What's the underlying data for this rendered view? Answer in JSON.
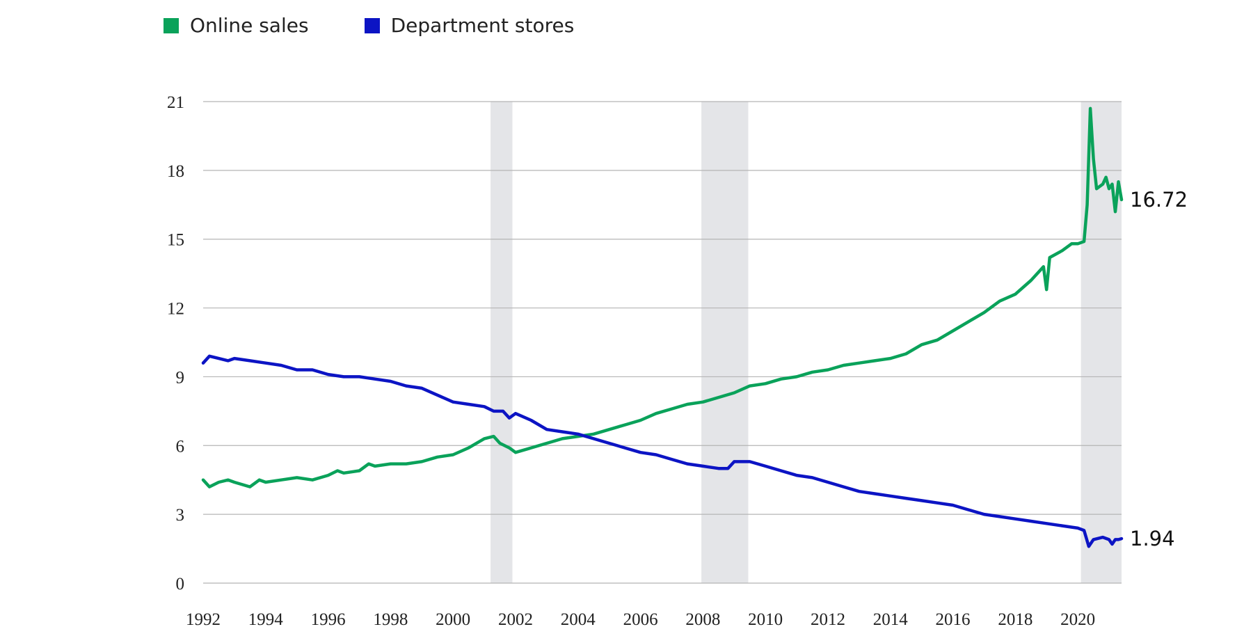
{
  "legend": [
    {
      "name": "Online sales",
      "color": "#0aa25a"
    },
    {
      "name": "Department stores",
      "color": "#0c14c4"
    }
  ],
  "chart_data": {
    "type": "line",
    "title": "",
    "xlabel": "",
    "ylabel": "",
    "xlim": [
      1992,
      2021.4
    ],
    "ylim": [
      0,
      21
    ],
    "yticks": [
      0,
      3,
      6,
      9,
      12,
      15,
      18,
      21
    ],
    "xticks": [
      1992,
      1994,
      1996,
      1998,
      2000,
      2002,
      2004,
      2006,
      2008,
      2010,
      2012,
      2014,
      2016,
      2018,
      2020
    ],
    "grid": "horizontal",
    "legend_position": "top-left",
    "shaded_periods": [
      {
        "start": 2001.2,
        "end": 2001.9
      },
      {
        "start": 2007.95,
        "end": 2009.45
      },
      {
        "start": 2020.1,
        "end": 2021.4
      }
    ],
    "series": [
      {
        "name": "Online sales",
        "color": "#0aa25a",
        "end_label": "16.72",
        "points": [
          [
            1992.0,
            4.5
          ],
          [
            1992.2,
            4.2
          ],
          [
            1992.5,
            4.4
          ],
          [
            1992.8,
            4.5
          ],
          [
            1993.0,
            4.4
          ],
          [
            1993.5,
            4.2
          ],
          [
            1993.8,
            4.5
          ],
          [
            1994.0,
            4.4
          ],
          [
            1994.5,
            4.5
          ],
          [
            1995.0,
            4.6
          ],
          [
            1995.5,
            4.5
          ],
          [
            1996.0,
            4.7
          ],
          [
            1996.3,
            4.9
          ],
          [
            1996.5,
            4.8
          ],
          [
            1997.0,
            4.9
          ],
          [
            1997.3,
            5.2
          ],
          [
            1997.5,
            5.1
          ],
          [
            1998.0,
            5.2
          ],
          [
            1998.5,
            5.2
          ],
          [
            1999.0,
            5.3
          ],
          [
            1999.5,
            5.5
          ],
          [
            2000.0,
            5.6
          ],
          [
            2000.5,
            5.9
          ],
          [
            2001.0,
            6.3
          ],
          [
            2001.3,
            6.4
          ],
          [
            2001.5,
            6.1
          ],
          [
            2001.8,
            5.9
          ],
          [
            2002.0,
            5.7
          ],
          [
            2002.5,
            5.9
          ],
          [
            2003.0,
            6.1
          ],
          [
            2003.5,
            6.3
          ],
          [
            2004.0,
            6.4
          ],
          [
            2004.5,
            6.5
          ],
          [
            2005.0,
            6.7
          ],
          [
            2005.5,
            6.9
          ],
          [
            2006.0,
            7.1
          ],
          [
            2006.5,
            7.4
          ],
          [
            2007.0,
            7.6
          ],
          [
            2007.5,
            7.8
          ],
          [
            2008.0,
            7.9
          ],
          [
            2008.5,
            8.1
          ],
          [
            2009.0,
            8.3
          ],
          [
            2009.5,
            8.6
          ],
          [
            2010.0,
            8.7
          ],
          [
            2010.5,
            8.9
          ],
          [
            2011.0,
            9.0
          ],
          [
            2011.5,
            9.2
          ],
          [
            2012.0,
            9.3
          ],
          [
            2012.5,
            9.5
          ],
          [
            2013.0,
            9.6
          ],
          [
            2013.5,
            9.7
          ],
          [
            2014.0,
            9.8
          ],
          [
            2014.5,
            10.0
          ],
          [
            2015.0,
            10.4
          ],
          [
            2015.5,
            10.6
          ],
          [
            2016.0,
            11.0
          ],
          [
            2016.5,
            11.4
          ],
          [
            2017.0,
            11.8
          ],
          [
            2017.5,
            12.3
          ],
          [
            2018.0,
            12.6
          ],
          [
            2018.5,
            13.2
          ],
          [
            2018.9,
            13.8
          ],
          [
            2019.0,
            12.8
          ],
          [
            2019.1,
            14.2
          ],
          [
            2019.5,
            14.5
          ],
          [
            2019.8,
            14.8
          ],
          [
            2020.0,
            14.8
          ],
          [
            2020.2,
            14.9
          ],
          [
            2020.3,
            16.5
          ],
          [
            2020.4,
            20.7
          ],
          [
            2020.5,
            18.5
          ],
          [
            2020.6,
            17.2
          ],
          [
            2020.8,
            17.4
          ],
          [
            2020.9,
            17.7
          ],
          [
            2021.0,
            17.2
          ],
          [
            2021.1,
            17.4
          ],
          [
            2021.2,
            16.2
          ],
          [
            2021.3,
            17.5
          ],
          [
            2021.4,
            16.72
          ]
        ]
      },
      {
        "name": "Department stores",
        "color": "#0c14c4",
        "end_label": "1.94",
        "points": [
          [
            1992.0,
            9.6
          ],
          [
            1992.2,
            9.9
          ],
          [
            1992.5,
            9.8
          ],
          [
            1992.8,
            9.7
          ],
          [
            1993.0,
            9.8
          ],
          [
            1993.5,
            9.7
          ],
          [
            1994.0,
            9.6
          ],
          [
            1994.5,
            9.5
          ],
          [
            1995.0,
            9.3
          ],
          [
            1995.5,
            9.3
          ],
          [
            1996.0,
            9.1
          ],
          [
            1996.5,
            9.0
          ],
          [
            1997.0,
            9.0
          ],
          [
            1997.5,
            8.9
          ],
          [
            1998.0,
            8.8
          ],
          [
            1998.5,
            8.6
          ],
          [
            1999.0,
            8.5
          ],
          [
            1999.5,
            8.2
          ],
          [
            2000.0,
            7.9
          ],
          [
            2000.5,
            7.8
          ],
          [
            2001.0,
            7.7
          ],
          [
            2001.3,
            7.5
          ],
          [
            2001.6,
            7.5
          ],
          [
            2001.8,
            7.2
          ],
          [
            2002.0,
            7.4
          ],
          [
            2002.5,
            7.1
          ],
          [
            2003.0,
            6.7
          ],
          [
            2003.5,
            6.6
          ],
          [
            2004.0,
            6.5
          ],
          [
            2004.5,
            6.3
          ],
          [
            2005.0,
            6.1
          ],
          [
            2005.5,
            5.9
          ],
          [
            2006.0,
            5.7
          ],
          [
            2006.5,
            5.6
          ],
          [
            2007.0,
            5.4
          ],
          [
            2007.5,
            5.2
          ],
          [
            2008.0,
            5.1
          ],
          [
            2008.5,
            5.0
          ],
          [
            2008.8,
            5.0
          ],
          [
            2009.0,
            5.3
          ],
          [
            2009.5,
            5.3
          ],
          [
            2010.0,
            5.1
          ],
          [
            2010.5,
            4.9
          ],
          [
            2011.0,
            4.7
          ],
          [
            2011.5,
            4.6
          ],
          [
            2012.0,
            4.4
          ],
          [
            2012.5,
            4.2
          ],
          [
            2013.0,
            4.0
          ],
          [
            2013.5,
            3.9
          ],
          [
            2014.0,
            3.8
          ],
          [
            2014.5,
            3.7
          ],
          [
            2015.0,
            3.6
          ],
          [
            2015.5,
            3.5
          ],
          [
            2016.0,
            3.4
          ],
          [
            2016.5,
            3.2
          ],
          [
            2017.0,
            3.0
          ],
          [
            2017.5,
            2.9
          ],
          [
            2018.0,
            2.8
          ],
          [
            2018.5,
            2.7
          ],
          [
            2019.0,
            2.6
          ],
          [
            2019.5,
            2.5
          ],
          [
            2020.0,
            2.4
          ],
          [
            2020.2,
            2.3
          ],
          [
            2020.35,
            1.6
          ],
          [
            2020.5,
            1.9
          ],
          [
            2020.8,
            2.0
          ],
          [
            2021.0,
            1.9
          ],
          [
            2021.1,
            1.7
          ],
          [
            2021.2,
            1.9
          ],
          [
            2021.3,
            1.9
          ],
          [
            2021.4,
            1.94
          ]
        ]
      }
    ]
  }
}
